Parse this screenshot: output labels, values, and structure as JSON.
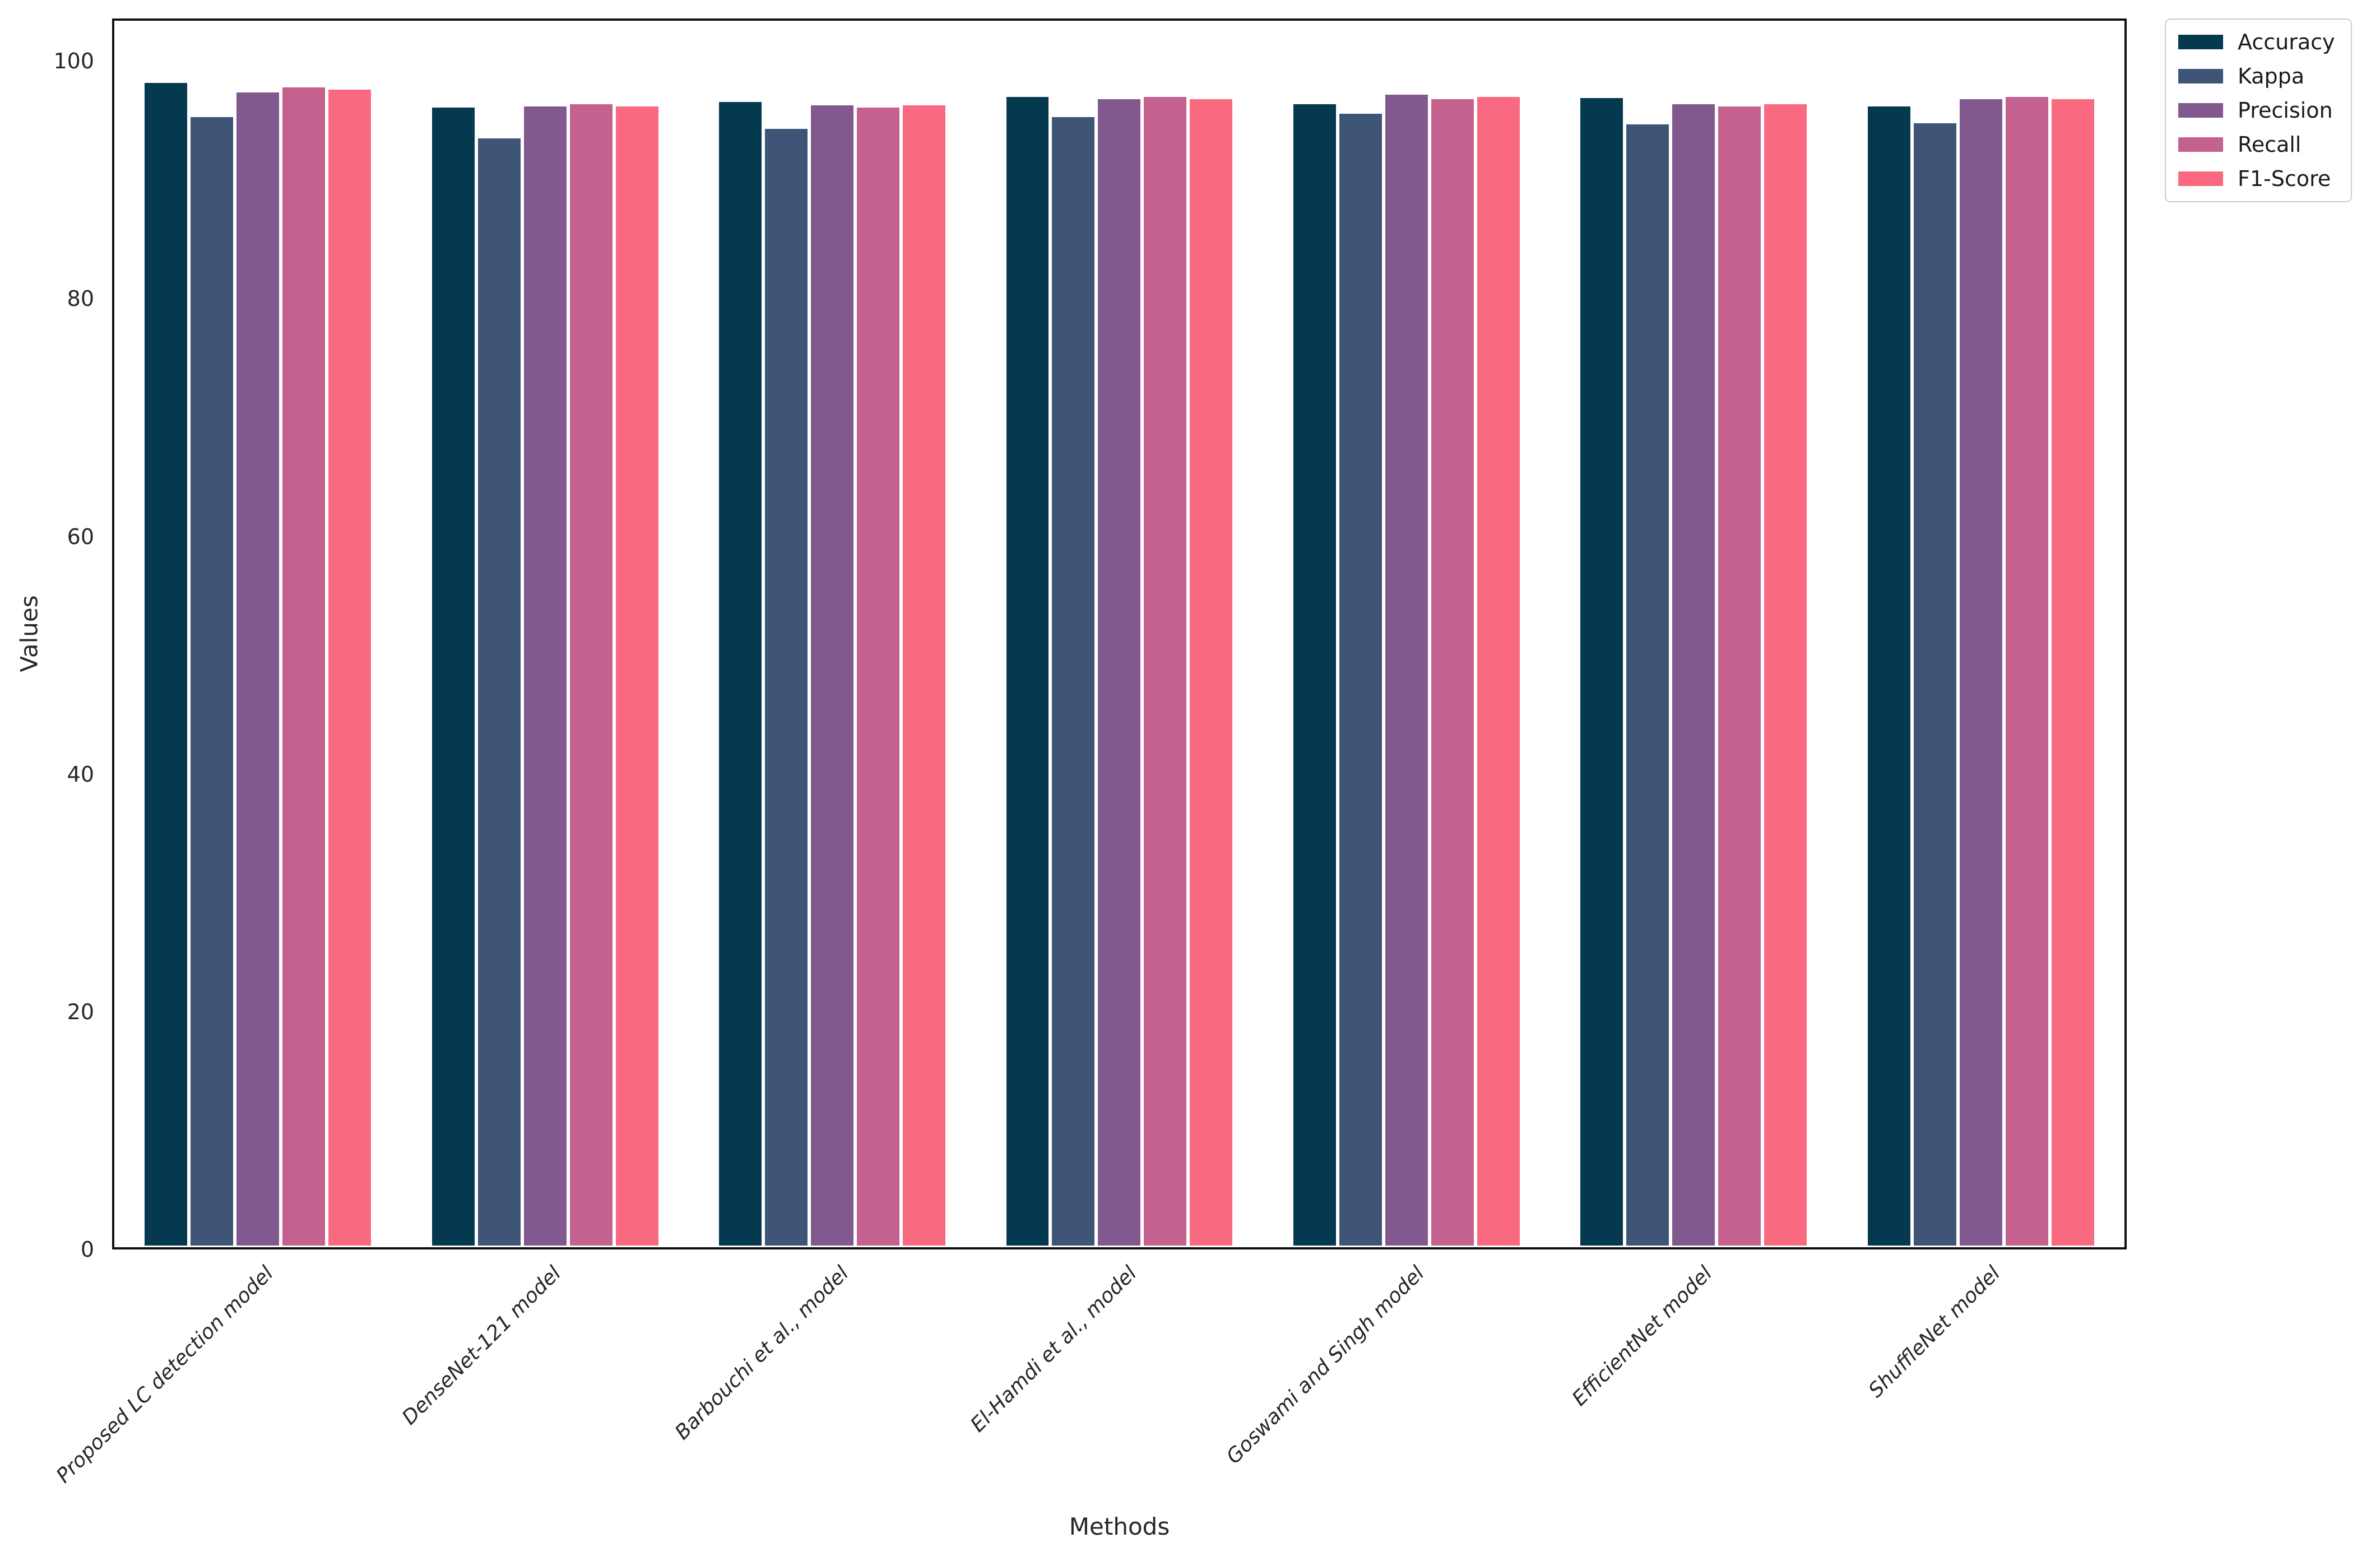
{
  "figure": {
    "background": "#ffffff",
    "text_color": "#262626",
    "spine_color": "#111111",
    "bar_edge_color": "#ffffff",
    "legend_border_color": "#cccccc"
  },
  "chart_data": {
    "type": "bar",
    "title": "",
    "xlabel": "Methods",
    "ylabel": "Values",
    "categories": [
      "Proposed LC detection model",
      "DenseNet-121 model",
      "Barbouchi et al., model",
      "El-Hamdi et al., model",
      "Goswami and Singh model",
      "EfficientNet model",
      "ShuffleNet model"
    ],
    "series": [
      {
        "name": "Accuracy",
        "color": "#053950",
        "values": [
          98.5,
          96.4,
          96.9,
          97.3,
          96.7,
          97.2,
          96.5
        ]
      },
      {
        "name": "Kappa",
        "color": "#3e5578",
        "values": [
          95.6,
          93.8,
          94.6,
          95.6,
          95.9,
          95.0,
          95.1
        ]
      },
      {
        "name": "Precision",
        "color": "#81598e",
        "values": [
          97.7,
          96.5,
          96.6,
          97.1,
          97.5,
          96.7,
          97.1
        ]
      },
      {
        "name": "Recall",
        "color": "#c5618f",
        "values": [
          98.1,
          96.7,
          96.4,
          97.3,
          97.1,
          96.5,
          97.3
        ]
      },
      {
        "name": "F1-Score",
        "color": "#f9697f",
        "values": [
          97.9,
          96.5,
          96.6,
          97.1,
          97.3,
          96.7,
          97.1
        ]
      }
    ],
    "yticks": [
      0,
      20,
      40,
      60,
      80,
      100
    ],
    "ylim": [
      0,
      103.6
    ],
    "grid": false,
    "legend_position": "upper-right-outside",
    "x_tick_style": "italic-rotated-45",
    "bar_group_width_fraction": 0.8
  }
}
